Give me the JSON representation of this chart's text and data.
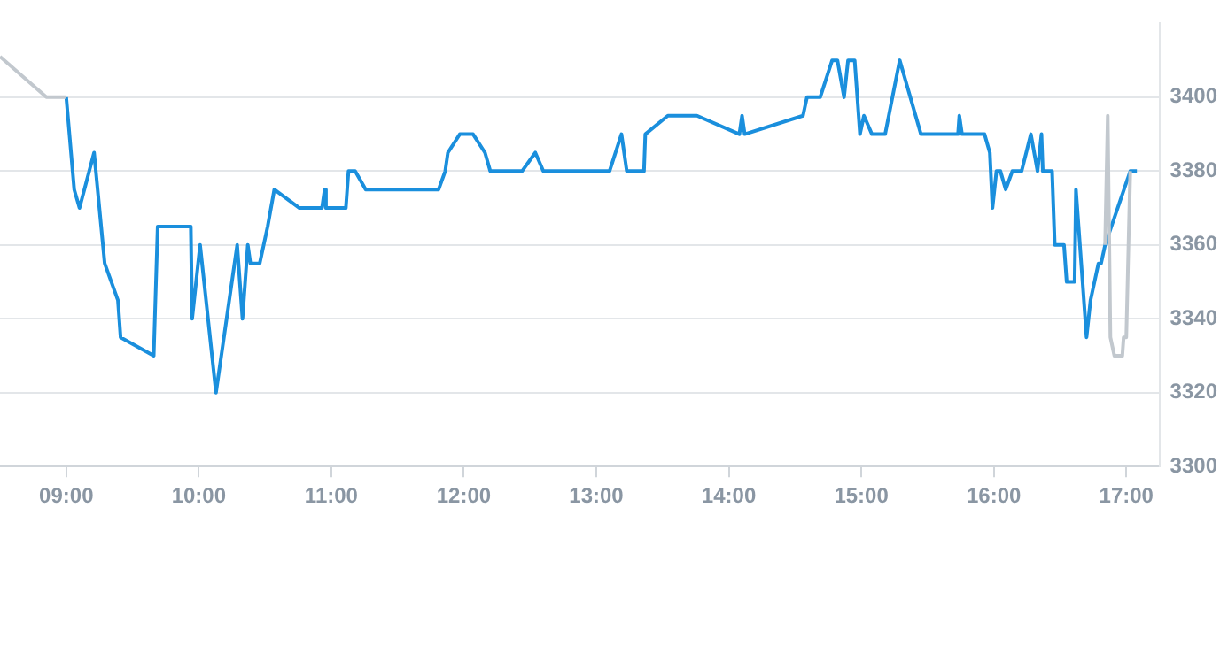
{
  "chart_data": {
    "type": "line",
    "xlim": [
      8.5,
      17.25
    ],
    "ylim": [
      3300,
      3420
    ],
    "xticks": [
      {
        "value": 9,
        "label": "09:00"
      },
      {
        "value": 10,
        "label": "10:00"
      },
      {
        "value": 11,
        "label": "11:00"
      },
      {
        "value": 12,
        "label": "12:00"
      },
      {
        "value": 13,
        "label": "13:00"
      },
      {
        "value": 14,
        "label": "14:00"
      },
      {
        "value": 15,
        "label": "15:00"
      },
      {
        "value": 16,
        "label": "16:00"
      },
      {
        "value": 17,
        "label": "17:00"
      }
    ],
    "yticks": [
      3300,
      3320,
      3340,
      3360,
      3380,
      3400
    ],
    "grid": "y",
    "marker": "none",
    "line_style": "solid",
    "series": [
      {
        "color": "#c2c8ce",
        "x": [
          8.5,
          8.85,
          9.0
        ],
        "values": [
          3411,
          3400,
          3400
        ]
      },
      {
        "color": "#c2c8ce",
        "x": [
          16.84,
          16.86,
          16.88,
          16.91,
          16.97,
          16.98,
          17.0,
          17.03
        ],
        "values": [
          3360,
          3395,
          3335,
          3330,
          3330,
          3335,
          3335,
          3380
        ]
      },
      {
        "color": "#1a8fdd",
        "x": [
          9.0,
          9.06,
          9.1,
          9.21,
          9.29,
          9.39,
          9.41,
          9.66,
          9.69,
          9.94,
          9.95,
          10.01,
          10.13,
          10.29,
          10.33,
          10.37,
          10.39,
          10.46,
          10.52,
          10.57,
          10.76,
          10.93,
          10.95,
          10.96,
          11.11,
          11.13,
          11.18,
          11.26,
          11.81,
          11.86,
          11.88,
          11.97,
          12.07,
          12.16,
          12.2,
          12.44,
          12.54,
          12.6,
          13.1,
          13.19,
          13.23,
          13.36,
          13.37,
          13.54,
          13.76,
          14.08,
          14.1,
          14.12,
          14.56,
          14.59,
          14.69,
          14.78,
          14.82,
          14.87,
          14.9,
          14.95,
          14.99,
          15.02,
          15.08,
          15.18,
          15.29,
          15.45,
          15.73,
          15.74,
          15.76,
          15.93,
          15.97,
          15.99,
          16.0,
          16.02,
          16.05,
          16.09,
          16.14,
          16.21,
          16.28,
          16.33,
          16.36,
          16.37,
          16.44,
          16.46,
          16.53,
          16.55,
          16.61,
          16.62,
          16.7,
          16.73,
          16.79,
          16.81,
          16.84,
          17.03,
          17.08
        ],
        "values": [
          3400,
          3375,
          3370,
          3385,
          3355,
          3345,
          3335,
          3330,
          3365,
          3365,
          3340,
          3360,
          3320,
          3360,
          3340,
          3360,
          3355,
          3355,
          3365,
          3375,
          3370,
          3370,
          3375,
          3370,
          3370,
          3380,
          3380,
          3375,
          3375,
          3380,
          3385,
          3390,
          3390,
          3385,
          3380,
          3380,
          3385,
          3380,
          3380,
          3390,
          3380,
          3380,
          3390,
          3395,
          3395,
          3390,
          3395,
          3390,
          3395,
          3400,
          3400,
          3410,
          3410,
          3400,
          3410,
          3410,
          3390,
          3395,
          3390,
          3390,
          3410,
          3390,
          3390,
          3395,
          3390,
          3390,
          3385,
          3370,
          3370,
          3380,
          3380,
          3375,
          3380,
          3380,
          3390,
          3380,
          3390,
          3380,
          3380,
          3360,
          3360,
          3350,
          3350,
          3375,
          3335,
          3345,
          3355,
          3355,
          3360,
          3380,
          3380
        ]
      }
    ]
  }
}
